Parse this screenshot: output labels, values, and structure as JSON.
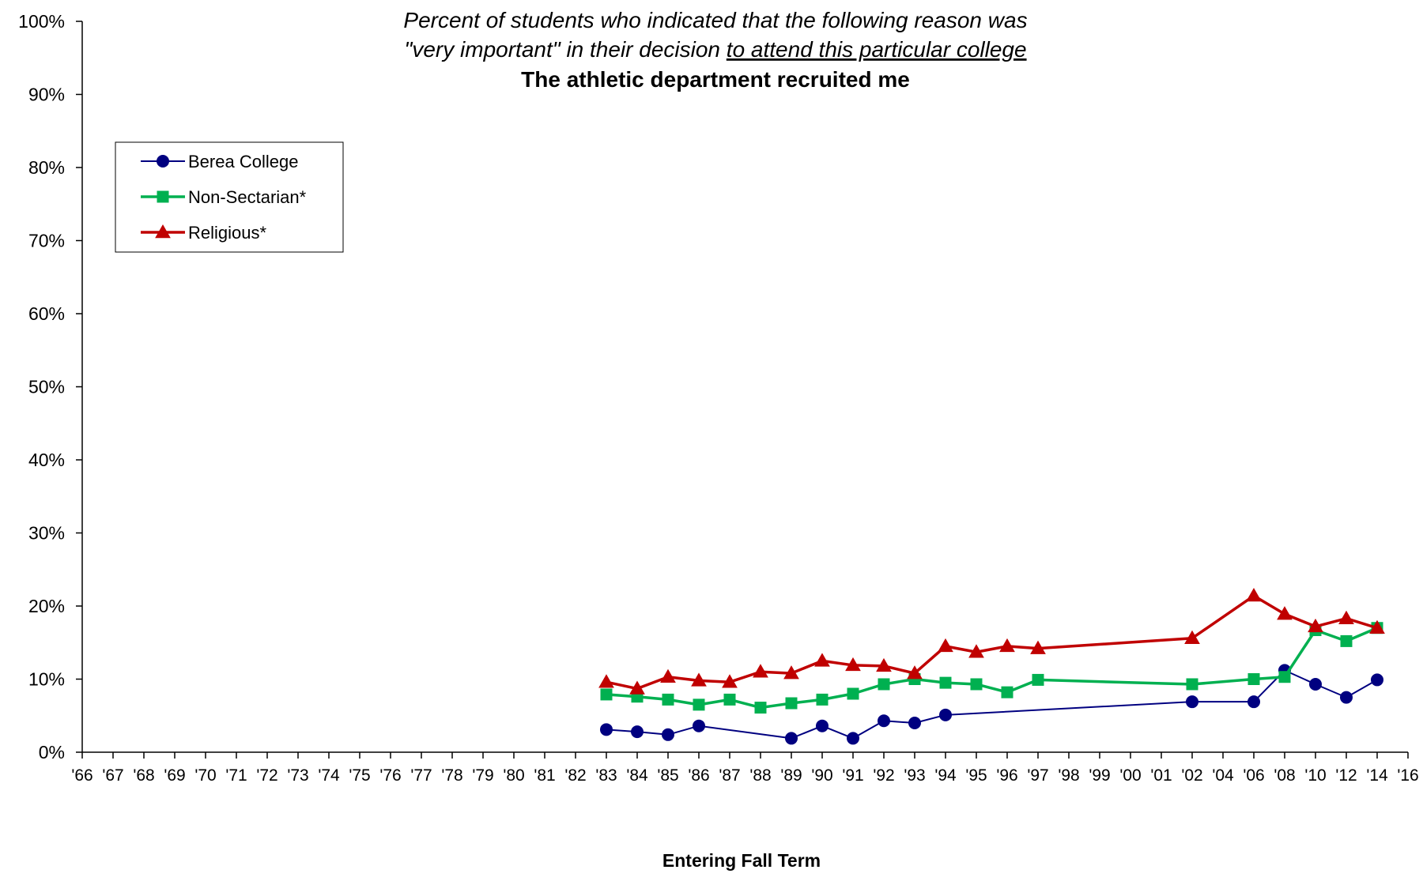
{
  "chart_data": {
    "type": "line",
    "title_line1": "Percent of students who indicated that the following reason was",
    "title_line2_prefix": "\"very important\"  in their decision ",
    "title_line2_underlined": "to attend this particular college",
    "title_line3": "The athletic department recruited me",
    "xlabel": "Entering Fall Term",
    "ylabel": "",
    "ylim": [
      0,
      100
    ],
    "y_ticks": [
      "0%",
      "10%",
      "20%",
      "30%",
      "40%",
      "50%",
      "60%",
      "70%",
      "80%",
      "90%",
      "100%"
    ],
    "categories": [
      "'66",
      "'67",
      "'68",
      "'69",
      "'70",
      "'71",
      "'72",
      "'73",
      "'74",
      "'75",
      "'76",
      "'77",
      "'78",
      "'79",
      "'80",
      "'81",
      "'82",
      "'83",
      "'84",
      "'85",
      "'86",
      "'87",
      "'88",
      "'89",
      "'90",
      "'91",
      "'92",
      "'93",
      "'94",
      "'95",
      "'96",
      "'97",
      "'98",
      "'99",
      "'00",
      "'01",
      "'02",
      "'04",
      "'06",
      "'08",
      "'10",
      "'12",
      "'14",
      "'16"
    ],
    "legend_position": "upper-left",
    "grid": false,
    "series": [
      {
        "name": "Berea College",
        "color": "#000080",
        "marker": "circle",
        "values": [
          null,
          null,
          null,
          null,
          null,
          null,
          null,
          null,
          null,
          null,
          null,
          null,
          null,
          null,
          null,
          null,
          null,
          3.1,
          2.8,
          2.4,
          3.6,
          null,
          null,
          1.9,
          3.6,
          1.9,
          4.3,
          4.0,
          5.1,
          null,
          null,
          null,
          null,
          null,
          null,
          null,
          6.9,
          null,
          6.9,
          11.2,
          9.3,
          7.5,
          9.9,
          null
        ]
      },
      {
        "name": "Non-Sectarian*",
        "color": "#00b050",
        "marker": "square",
        "values": [
          null,
          null,
          null,
          null,
          null,
          null,
          null,
          null,
          null,
          null,
          null,
          null,
          null,
          null,
          null,
          null,
          null,
          7.9,
          7.6,
          7.2,
          6.5,
          7.2,
          6.1,
          6.7,
          7.2,
          8.0,
          9.3,
          10.0,
          9.5,
          9.3,
          8.2,
          9.9,
          null,
          null,
          null,
          null,
          9.3,
          null,
          10.0,
          10.3,
          16.7,
          15.2,
          17.0,
          null
        ]
      },
      {
        "name": "Religious*",
        "color": "#c00000",
        "marker": "triangle",
        "values": [
          null,
          null,
          null,
          null,
          null,
          null,
          null,
          null,
          null,
          null,
          null,
          null,
          null,
          null,
          null,
          null,
          null,
          9.6,
          8.7,
          10.3,
          9.8,
          9.6,
          11.0,
          10.8,
          12.5,
          11.9,
          11.8,
          10.8,
          14.5,
          13.7,
          14.5,
          14.2,
          null,
          null,
          null,
          null,
          15.6,
          null,
          21.4,
          18.9,
          17.2,
          18.3,
          17.0,
          null
        ]
      }
    ]
  }
}
